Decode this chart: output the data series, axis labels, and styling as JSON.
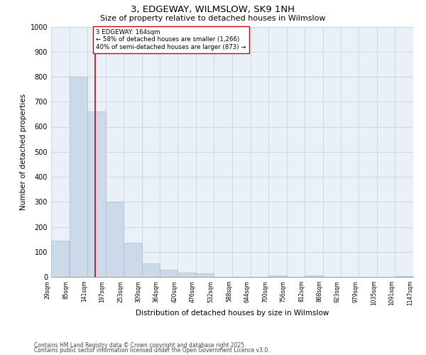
{
  "title": "3, EDGEWAY, WILMSLOW, SK9 1NH",
  "subtitle": "Size of property relative to detached houses in Wilmslow",
  "xlabel": "Distribution of detached houses by size in Wilmslow",
  "ylabel": "Number of detached properties",
  "bar_left_edges": [
    29,
    85,
    141,
    197,
    253,
    309,
    364,
    420,
    476,
    532,
    588,
    644,
    700,
    756,
    812,
    868,
    923,
    979,
    1035,
    1091
  ],
  "bar_heights": [
    145,
    800,
    660,
    300,
    135,
    55,
    27,
    16,
    14,
    0,
    0,
    0,
    5,
    0,
    7,
    0,
    0,
    0,
    0,
    4
  ],
  "bin_width": 56,
  "bar_color": "#ccd9e8",
  "bar_edge_color": "#a8bece",
  "grid_color": "#c8d4e0",
  "background_color": "#eaf0f8",
  "vline_x": 164,
  "vline_color": "#cc0000",
  "annotation_text": "3 EDGEWAY: 164sqm\n← 58% of detached houses are smaller (1,266)\n40% of semi-detached houses are larger (873) →",
  "ylim": [
    0,
    1000
  ],
  "tick_labels": [
    "29sqm",
    "85sqm",
    "141sqm",
    "197sqm",
    "253sqm",
    "309sqm",
    "364sqm",
    "420sqm",
    "476sqm",
    "532sqm",
    "588sqm",
    "644sqm",
    "700sqm",
    "756sqm",
    "812sqm",
    "868sqm",
    "923sqm",
    "979sqm",
    "1035sqm",
    "1091sqm",
    "1147sqm"
  ],
  "ytick_labels": [
    "0",
    "100",
    "200",
    "300",
    "400",
    "500",
    "600",
    "700",
    "800",
    "900",
    "1000"
  ],
  "footnote1": "Contains HM Land Registry data © Crown copyright and database right 2025.",
  "footnote2": "Contains public sector information licensed under the Open Government Licence v3.0."
}
